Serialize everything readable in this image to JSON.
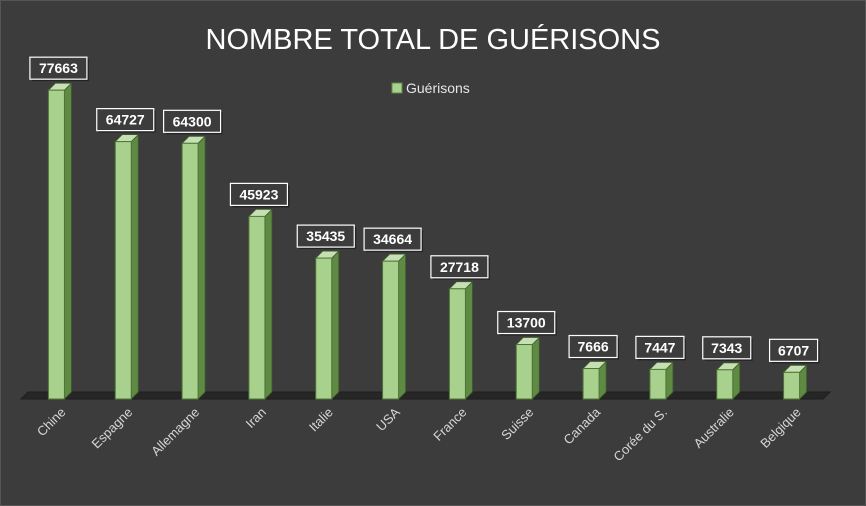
{
  "chart_data": {
    "type": "bar",
    "title": "NOMBRE TOTAL DE GUÉRISONS",
    "legend": {
      "position": "top",
      "entries": [
        "Guérisons"
      ]
    },
    "categories": [
      "Chine",
      "Espagne",
      "Allemagne",
      "Iran",
      "Italie",
      "USA",
      "France",
      "Suisse",
      "Canada",
      "Corée du S.",
      "Australie",
      "Belgique"
    ],
    "series": [
      {
        "name": "Guérisons",
        "values": [
          77663,
          64727,
          64300,
          45923,
          35435,
          34664,
          27718,
          13700,
          7666,
          7447,
          7343,
          6707
        ]
      }
    ],
    "data_labels": true,
    "grid": false,
    "ylim": [
      0,
      85000
    ],
    "colors": {
      "background": "#3c3c3c",
      "bar_front": "#a9d18e",
      "bar_side": "#5f8a43",
      "bar_top": "#c6e0b4",
      "label_box": "#3c3c3c",
      "label_border": "#ffffff",
      "floor": "#262626"
    }
  }
}
